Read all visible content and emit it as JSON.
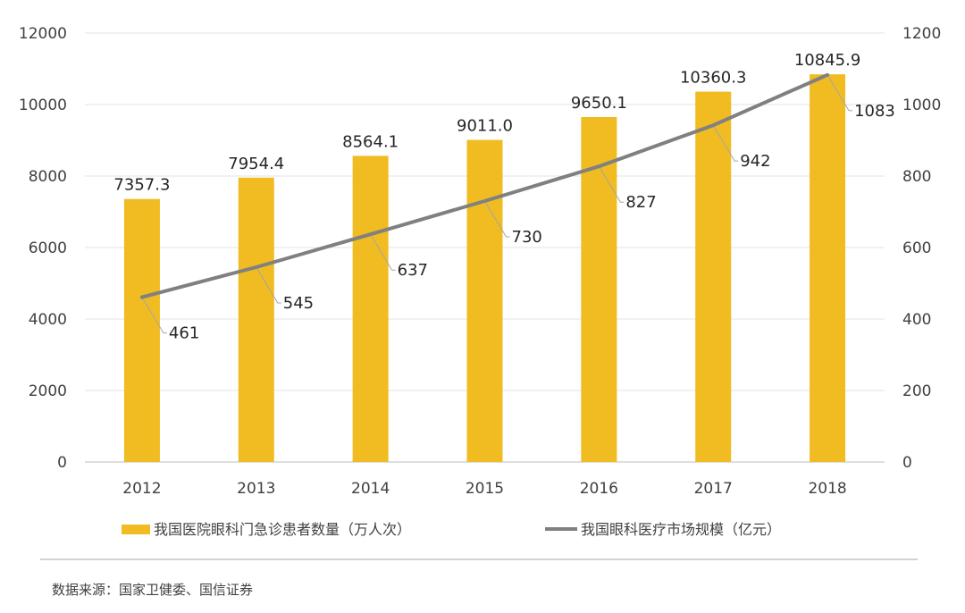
{
  "chart_data": {
    "type": "bar",
    "categories": [
      "2012",
      "2013",
      "2014",
      "2015",
      "2016",
      "2017",
      "2018"
    ],
    "series": [
      {
        "name": "我国医院眼科门急诊患者数量（万人次）",
        "type": "bar",
        "axis": "left",
        "color": "#F0BC22",
        "values": [
          7357.3,
          7954.4,
          8564.1,
          9011.0,
          9650.1,
          10360.3,
          10845.9
        ],
        "labels": [
          "7357.3",
          "7954.4",
          "8564.1",
          "9011.0",
          "9650.1",
          "10360.3",
          "10845.9"
        ]
      },
      {
        "name": "我国眼科医疗市场规模（亿元）",
        "type": "line",
        "axis": "right",
        "color": "#808080",
        "values": [
          461,
          545,
          637,
          730,
          827,
          942,
          1083
        ],
        "labels": [
          "461",
          "545",
          "637",
          "730",
          "827",
          "942",
          "1083"
        ]
      }
    ],
    "y_left": {
      "min": 0,
      "max": 12000,
      "ticks": [
        "0",
        "2000",
        "4000",
        "6000",
        "8000",
        "10000",
        "12000"
      ]
    },
    "y_right": {
      "min": 0,
      "max": 1200,
      "ticks": [
        "0",
        "200",
        "400",
        "600",
        "800",
        "1000",
        "1200"
      ]
    },
    "grid": true,
    "legend_position": "bottom",
    "source": "数据来源：国家卫健委、国信证券"
  }
}
